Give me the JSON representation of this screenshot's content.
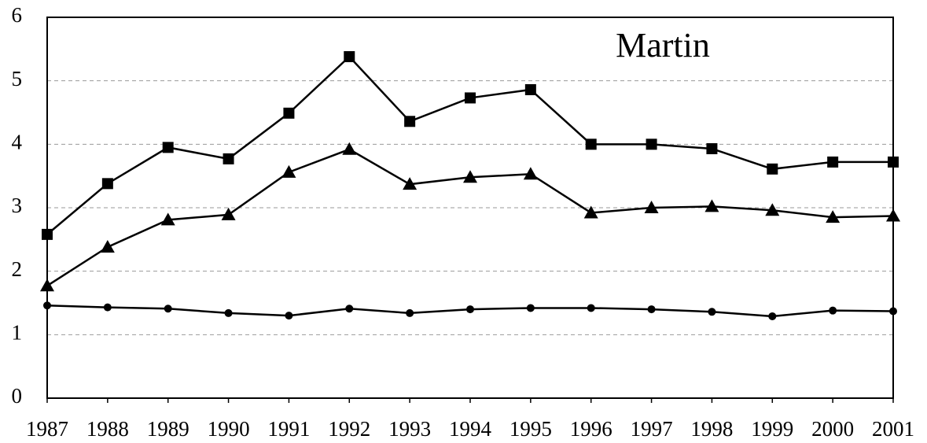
{
  "chart_data": {
    "type": "line",
    "title": "Martin",
    "categories": [
      "1987",
      "1988",
      "1989",
      "1990",
      "1991",
      "1992",
      "1993",
      "1994",
      "1995",
      "1996",
      "1997",
      "1998",
      "1999",
      "2000",
      "2001"
    ],
    "series": [
      {
        "color": "#000000",
        "marker": "square",
        "values": [
          2.58,
          3.38,
          3.95,
          3.77,
          4.49,
          5.38,
          4.36,
          4.73,
          4.86,
          4.0,
          4.0,
          3.93,
          3.61,
          3.72,
          3.72
        ]
      },
      {
        "color": "#000000",
        "marker": "triangle",
        "values": [
          1.77,
          2.38,
          2.81,
          2.89,
          3.56,
          3.92,
          3.37,
          3.48,
          3.53,
          2.92,
          3.0,
          3.02,
          2.96,
          2.85,
          2.87
        ]
      },
      {
        "color": "#000000",
        "marker": "circle",
        "values": [
          1.46,
          1.43,
          1.41,
          1.34,
          1.3,
          1.41,
          1.34,
          1.4,
          1.42,
          1.42,
          1.4,
          1.36,
          1.29,
          1.38,
          1.37
        ]
      }
    ],
    "ylim": [
      0,
      6
    ],
    "yticks": [
      0,
      1,
      2,
      3,
      4,
      5,
      6
    ],
    "grid": true
  }
}
